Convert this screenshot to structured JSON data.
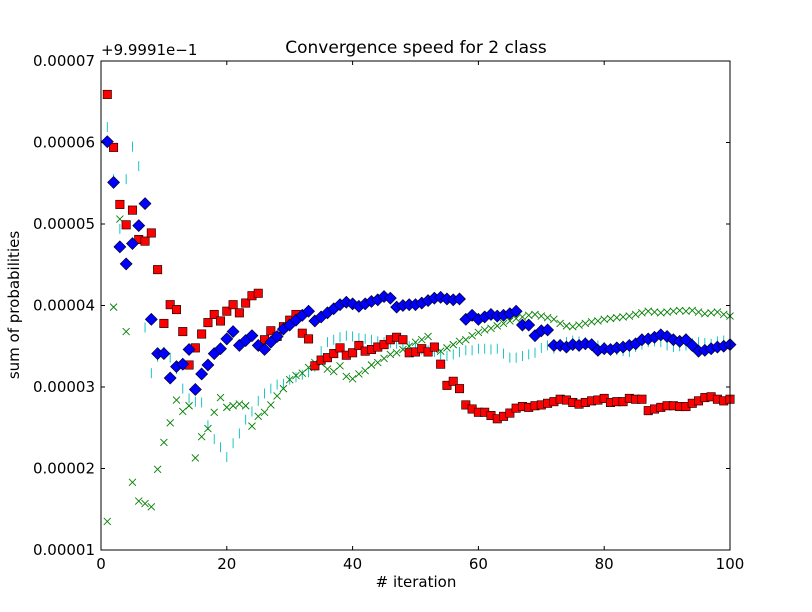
{
  "chart_data": {
    "type": "scatter",
    "title": "Convergence speed for 2 class",
    "xlabel": "# iteration",
    "ylabel": "sum of probabilities",
    "y_offset_label": "+9.9991e−1",
    "xlim": [
      0,
      100
    ],
    "ylim": [
      1e-05,
      7e-05
    ],
    "x_ticks": [
      0,
      20,
      40,
      60,
      80,
      100
    ],
    "x_tick_labels": [
      "0",
      "20",
      "40",
      "60",
      "80",
      "100"
    ],
    "y_ticks": [
      1e-05,
      2e-05,
      3e-05,
      4e-05,
      5e-05,
      6e-05,
      7e-05
    ],
    "y_tick_labels": [
      "0.00001",
      "0.00002",
      "0.00003",
      "0.00004",
      "0.00005",
      "0.00006",
      "0.00007"
    ],
    "grid": false,
    "series": [
      {
        "marker": "diamond",
        "color": "#0000ff",
        "x": [
          1,
          2,
          3,
          4,
          5,
          6,
          7,
          8,
          9,
          10,
          11,
          12,
          13,
          14,
          15,
          16,
          17,
          18,
          19,
          20,
          21,
          22,
          23,
          24,
          25,
          26,
          27,
          28,
          29,
          30,
          31,
          32,
          33,
          34,
          35,
          36,
          37,
          38,
          39,
          40,
          41,
          42,
          43,
          44,
          45,
          46,
          47,
          48,
          49,
          50,
          51,
          52,
          53,
          54,
          55,
          56,
          57,
          58,
          59,
          60,
          61,
          62,
          63,
          64,
          65,
          66,
          67,
          68,
          69,
          70,
          71,
          72,
          73,
          74,
          75,
          76,
          77,
          78,
          79,
          80,
          81,
          82,
          83,
          84,
          85,
          86,
          87,
          88,
          89,
          90,
          91,
          92,
          93,
          94,
          95,
          96,
          97,
          98,
          99,
          100
        ],
        "y": [
          6.01e-05,
          5.51e-05,
          4.72e-05,
          4.51e-05,
          4.76e-05,
          4.98e-05,
          5.25e-05,
          3.83e-05,
          3.41e-05,
          3.41e-05,
          3.11e-05,
          3.25e-05,
          3.28e-05,
          3.46e-05,
          2.97e-05,
          3.16e-05,
          3.27e-05,
          3.41e-05,
          3.47e-05,
          3.59e-05,
          3.68e-05,
          3.51e-05,
          3.57e-05,
          3.63e-05,
          3.51e-05,
          3.46e-05,
          3.55e-05,
          3.62e-05,
          3.71e-05,
          3.76e-05,
          3.82e-05,
          3.88e-05,
          3.93e-05,
          3.81e-05,
          3.86e-05,
          3.91e-05,
          3.96e-05,
          4.01e-05,
          4.04e-05,
          4.02e-05,
          3.99e-05,
          4.02e-05,
          4.05e-05,
          4.07e-05,
          4.11e-05,
          4.09e-05,
          3.98e-05,
          4e-05,
          4.01e-05,
          4.01e-05,
          4.03e-05,
          4.06e-05,
          4.09e-05,
          4.1e-05,
          4.08e-05,
          4.07e-05,
          4.08e-05,
          3.83e-05,
          3.88e-05,
          3.83e-05,
          3.86e-05,
          3.89e-05,
          3.87e-05,
          3.88e-05,
          3.9e-05,
          3.93e-05,
          3.76e-05,
          3.76e-05,
          3.63e-05,
          3.69e-05,
          3.7e-05,
          3.51e-05,
          3.51e-05,
          3.49e-05,
          3.52e-05,
          3.51e-05,
          3.53e-05,
          3.52e-05,
          3.45e-05,
          3.47e-05,
          3.46e-05,
          3.48e-05,
          3.49e-05,
          3.51e-05,
          3.53e-05,
          3.58e-05,
          3.59e-05,
          3.61e-05,
          3.64e-05,
          3.62e-05,
          3.58e-05,
          3.56e-05,
          3.58e-05,
          3.51e-05,
          3.44e-05,
          3.45e-05,
          3.47e-05,
          3.49e-05,
          3.5e-05,
          3.52e-05
        ]
      },
      {
        "marker": "square",
        "color": "#ff0000",
        "x": [
          1,
          2,
          3,
          4,
          5,
          6,
          7,
          8,
          9,
          10,
          11,
          12,
          13,
          14,
          15,
          16,
          17,
          18,
          19,
          20,
          21,
          22,
          23,
          24,
          25,
          26,
          27,
          28,
          29,
          30,
          31,
          32,
          33,
          34,
          35,
          36,
          37,
          38,
          39,
          40,
          41,
          42,
          43,
          44,
          45,
          46,
          47,
          48,
          49,
          50,
          51,
          52,
          53,
          54,
          55,
          56,
          57,
          58,
          59,
          60,
          61,
          62,
          63,
          64,
          65,
          66,
          67,
          68,
          69,
          70,
          71,
          72,
          73,
          74,
          75,
          76,
          77,
          78,
          79,
          80,
          81,
          82,
          83,
          84,
          85,
          86,
          87,
          88,
          89,
          90,
          91,
          92,
          93,
          94,
          95,
          96,
          97,
          98,
          99,
          100
        ],
        "y": [
          6.59e-05,
          5.94e-05,
          5.24e-05,
          4.99e-05,
          5.17e-05,
          4.81e-05,
          4.79e-05,
          4.89e-05,
          4.44e-05,
          3.78e-05,
          4.01e-05,
          3.95e-05,
          3.68e-05,
          3.27e-05,
          3.48e-05,
          3.65e-05,
          3.79e-05,
          3.89e-05,
          3.81e-05,
          3.93e-05,
          4.01e-05,
          3.91e-05,
          4.03e-05,
          4.12e-05,
          4.15e-05,
          3.58e-05,
          3.69e-05,
          3.62e-05,
          3.74e-05,
          3.82e-05,
          3.89e-05,
          3.66e-05,
          3.59e-05,
          3.26e-05,
          3.33e-05,
          3.36e-05,
          3.41e-05,
          3.48e-05,
          3.39e-05,
          3.42e-05,
          3.51e-05,
          3.44e-05,
          3.46e-05,
          3.49e-05,
          3.52e-05,
          3.58e-05,
          3.61e-05,
          3.58e-05,
          3.42e-05,
          3.43e-05,
          3.47e-05,
          3.43e-05,
          3.49e-05,
          3.28e-05,
          3.02e-05,
          3.07e-05,
          2.98e-05,
          2.78e-05,
          2.73e-05,
          2.69e-05,
          2.69e-05,
          2.65e-05,
          2.61e-05,
          2.64e-05,
          2.68e-05,
          2.74e-05,
          2.76e-05,
          2.75e-05,
          2.77e-05,
          2.78e-05,
          2.8e-05,
          2.82e-05,
          2.85e-05,
          2.84e-05,
          2.81e-05,
          2.79e-05,
          2.81e-05,
          2.83e-05,
          2.84e-05,
          2.86e-05,
          2.81e-05,
          2.82e-05,
          2.82e-05,
          2.86e-05,
          2.85e-05,
          2.85e-05,
          2.71e-05,
          2.73e-05,
          2.75e-05,
          2.77e-05,
          2.77e-05,
          2.76e-05,
          2.76e-05,
          2.8e-05,
          2.83e-05,
          2.87e-05,
          2.88e-05,
          2.85e-05,
          2.83e-05,
          2.85e-05
        ]
      },
      {
        "marker": "x",
        "color": "#008000",
        "x": [
          1,
          2,
          3,
          4,
          5,
          6,
          7,
          8,
          9,
          10,
          11,
          12,
          13,
          14,
          15,
          16,
          17,
          18,
          19,
          20,
          21,
          22,
          23,
          24,
          25,
          26,
          27,
          28,
          29,
          30,
          31,
          32,
          33,
          34,
          35,
          36,
          37,
          38,
          39,
          40,
          41,
          42,
          43,
          44,
          45,
          46,
          47,
          48,
          49,
          50,
          51,
          52,
          53,
          54,
          55,
          56,
          57,
          58,
          59,
          60,
          61,
          62,
          63,
          64,
          65,
          66,
          67,
          68,
          69,
          70,
          71,
          72,
          73,
          74,
          75,
          76,
          77,
          78,
          79,
          80,
          81,
          82,
          83,
          84,
          85,
          86,
          87,
          88,
          89,
          90,
          91,
          92,
          93,
          94,
          95,
          96,
          97,
          98,
          99,
          100
        ],
        "y": [
          1.35e-05,
          3.98e-05,
          5.06e-05,
          3.68e-05,
          1.83e-05,
          1.6e-05,
          1.57e-05,
          1.53e-05,
          1.99e-05,
          2.32e-05,
          2.56e-05,
          2.84e-05,
          2.7e-05,
          2.77e-05,
          2.13e-05,
          2.39e-05,
          2.49e-05,
          2.69e-05,
          2.87e-05,
          2.75e-05,
          2.77e-05,
          2.79e-05,
          2.77e-05,
          2.52e-05,
          2.64e-05,
          2.69e-05,
          2.78e-05,
          2.89e-05,
          2.98e-05,
          3.09e-05,
          3.14e-05,
          3.17e-05,
          3.24e-05,
          3.3e-05,
          3.29e-05,
          3.22e-05,
          3.19e-05,
          3.26e-05,
          3.13e-05,
          3.1e-05,
          3.16e-05,
          3.2e-05,
          3.27e-05,
          3.3e-05,
          3.35e-05,
          3.4e-05,
          3.42e-05,
          3.46e-05,
          3.5e-05,
          3.55e-05,
          3.58e-05,
          3.62e-05,
          3.46e-05,
          3.44e-05,
          3.48e-05,
          3.52e-05,
          3.56e-05,
          3.58e-05,
          3.63e-05,
          3.67e-05,
          3.7e-05,
          3.72e-05,
          3.75e-05,
          3.78e-05,
          3.81e-05,
          3.84e-05,
          3.86e-05,
          3.88e-05,
          3.89e-05,
          3.87e-05,
          3.85e-05,
          3.83e-05,
          3.78e-05,
          3.75e-05,
          3.74e-05,
          3.76e-05,
          3.78e-05,
          3.8e-05,
          3.81e-05,
          3.83e-05,
          3.84e-05,
          3.85e-05,
          3.86e-05,
          3.87e-05,
          3.89e-05,
          3.91e-05,
          3.93e-05,
          3.92e-05,
          3.91e-05,
          3.92e-05,
          3.93e-05,
          3.94e-05,
          3.93e-05,
          3.94e-05,
          3.92e-05,
          3.9e-05,
          3.91e-05,
          3.92e-05,
          3.89e-05,
          3.87e-05
        ]
      },
      {
        "marker": "vline",
        "color": "#00bfbf",
        "x": [
          1,
          2,
          3,
          4,
          5,
          6,
          7,
          8,
          9,
          10,
          11,
          12,
          13,
          14,
          15,
          16,
          17,
          18,
          19,
          20,
          21,
          22,
          23,
          24,
          25,
          26,
          27,
          28,
          29,
          30,
          31,
          32,
          33,
          34,
          35,
          36,
          37,
          38,
          39,
          40,
          41,
          42,
          43,
          44,
          45,
          46,
          47,
          48,
          49,
          50,
          51,
          52,
          53,
          54,
          55,
          56,
          57,
          58,
          59,
          60,
          61,
          62,
          63,
          64,
          65,
          66,
          67,
          68,
          69,
          70,
          71,
          72,
          73,
          74,
          75,
          76,
          77,
          78,
          79,
          80,
          81,
          82,
          83,
          84,
          85,
          86,
          87,
          88,
          89,
          90,
          91,
          92,
          93,
          94,
          95,
          96,
          97,
          98,
          99,
          100
        ],
        "y": [
          6.19e-05,
          5.55e-05,
          4.94e-05,
          5.55e-05,
          5.95e-05,
          5.71e-05,
          3.73e-05,
          3.17e-05,
          3.37e-05,
          3.43e-05,
          3.36e-05,
          3.22e-05,
          2.98e-05,
          2.86e-05,
          2.82e-05,
          2.81e-05,
          2.53e-05,
          2.36e-05,
          2.26e-05,
          2.14e-05,
          2.31e-05,
          2.43e-05,
          2.6e-05,
          2.7e-05,
          2.83e-05,
          2.92e-05,
          2.98e-05,
          3.03e-05,
          3.04e-05,
          3.09e-05,
          3.12e-05,
          3.15e-05,
          3.18e-05,
          3.25e-05,
          3.44e-05,
          3.55e-05,
          3.58e-05,
          3.61e-05,
          3.63e-05,
          3.62e-05,
          3.6e-05,
          3.59e-05,
          3.58e-05,
          3.56e-05,
          3.55e-05,
          3.54e-05,
          3.53e-05,
          3.51e-05,
          3.5e-05,
          3.49e-05,
          3.46e-05,
          3.45e-05,
          3.43e-05,
          3.4e-05,
          3.38e-05,
          3.4e-05,
          3.43e-05,
          3.45e-05,
          3.45e-05,
          3.47e-05,
          3.47e-05,
          3.46e-05,
          3.47e-05,
          3.41e-05,
          3.36e-05,
          3.36e-05,
          3.38e-05,
          3.4e-05,
          3.42e-05,
          3.48e-05,
          3.51e-05,
          3.47e-05,
          3.53e-05,
          3.55e-05,
          3.57e-05,
          3.56e-05,
          3.55e-05,
          3.53e-05,
          3.51e-05,
          3.49e-05,
          3.47e-05,
          3.45e-05,
          3.44e-05,
          3.43e-05,
          3.49e-05,
          3.52e-05,
          3.55e-05,
          3.56e-05,
          3.55e-05,
          3.51e-05,
          3.49e-05,
          3.5e-05,
          3.51e-05,
          3.54e-05,
          3.55e-05,
          3.54e-05,
          3.53e-05,
          3.56e-05,
          3.57e-05,
          3.56e-05
        ]
      }
    ]
  }
}
